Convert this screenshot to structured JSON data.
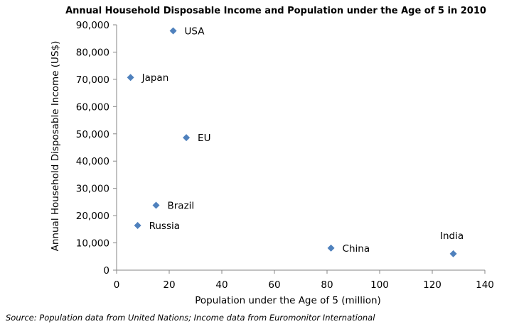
{
  "chart_data": {
    "type": "scatter",
    "title": "Annual Household Disposable Income and Population under the Age of 5 in 2010",
    "xlabel": "Population under the Age of 5 (million)",
    "ylabel": "Annual Household Disposable Income (US$)",
    "xlim": [
      0,
      140
    ],
    "ylim": [
      0,
      90000
    ],
    "xticks": [
      "0",
      "20",
      "40",
      "60",
      "80",
      "100",
      "120",
      "140"
    ],
    "yticks": [
      "0",
      "10,000",
      "20,000",
      "30,000",
      "40,000",
      "50,000",
      "60,000",
      "70,000",
      "80,000",
      "90,000"
    ],
    "grid": false,
    "legend": "none",
    "marker_color": "#4f81bd",
    "points": [
      {
        "label": "USA",
        "x": 21.5,
        "y": 87800,
        "label_pos": "right"
      },
      {
        "label": "Japan",
        "x": 5.3,
        "y": 70700,
        "label_pos": "right"
      },
      {
        "label": "EU",
        "x": 26.5,
        "y": 48600,
        "label_pos": "right"
      },
      {
        "label": "Brazil",
        "x": 15.0,
        "y": 23800,
        "label_pos": "right"
      },
      {
        "label": "Russia",
        "x": 8.0,
        "y": 16400,
        "label_pos": "right"
      },
      {
        "label": "China",
        "x": 81.5,
        "y": 8100,
        "label_pos": "right"
      },
      {
        "label": "India",
        "x": 128.0,
        "y": 6000,
        "label_pos": "above"
      }
    ]
  },
  "source": "Source: Population data from United Nations; Income data from Euromonitor International"
}
